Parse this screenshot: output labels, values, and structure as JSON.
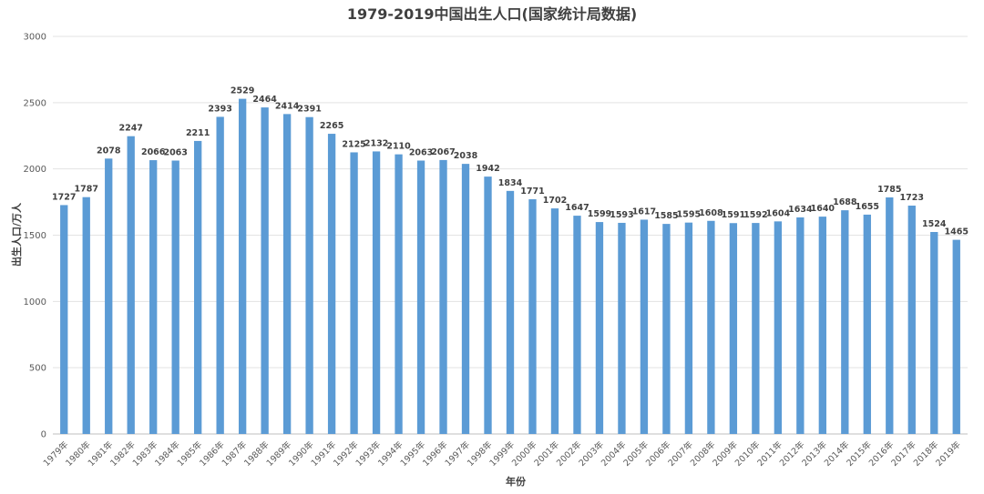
{
  "chart_data": {
    "type": "bar",
    "title": "1979-2019中国出生人口(国家统计局数据)",
    "xlabel": "年份",
    "ylabel": "出生人口/万人",
    "ylim": [
      0,
      3000
    ],
    "yticks": [
      0,
      500,
      1000,
      1500,
      2000,
      2500,
      3000
    ],
    "grid": true,
    "legend": "none",
    "colors": {
      "bar": "#5b9bd5"
    },
    "categories": [
      "1979年",
      "1980年",
      "1981年",
      "1982年",
      "1983年",
      "1984年",
      "1985年",
      "1986年",
      "1987年",
      "1988年",
      "1989年",
      "1990年",
      "1991年",
      "1992年",
      "1993年",
      "1994年",
      "1995年",
      "1996年",
      "1997年",
      "1998年",
      "1999年",
      "2000年",
      "2001年",
      "2002年",
      "2003年",
      "2004年",
      "2005年",
      "2006年",
      "2007年",
      "2008年",
      "2009年",
      "2010年",
      "2011年",
      "2012年",
      "2013年",
      "2014年",
      "2015年",
      "2016年",
      "2017年",
      "2018年",
      "2019年"
    ],
    "values": [
      1727,
      1787,
      2078,
      2247,
      2066,
      2063,
      2211,
      2393,
      2529,
      2464,
      2414,
      2391,
      2265,
      2125,
      2132,
      2110,
      2063,
      2067,
      2038,
      1942,
      1834,
      1771,
      1702,
      1647,
      1599,
      1593,
      1617,
      1585,
      1595,
      1608,
      1591,
      1592,
      1604,
      1634,
      1640,
      1688,
      1655,
      1785,
      1723,
      1524,
      1465
    ]
  }
}
